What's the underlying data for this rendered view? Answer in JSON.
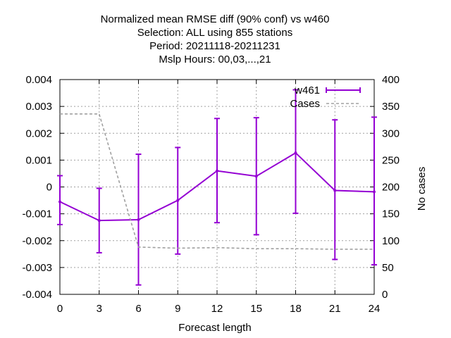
{
  "chart_data": {
    "type": "line",
    "title_lines": [
      "Normalized mean RMSE diff (90% conf) vs w460",
      "Selection: ALL using   855 stations",
      "Period: 20211118-20211231",
      "Mslp   Hours:  00,03,...,21"
    ],
    "xlabel": "Forecast length",
    "ylabel": "",
    "y2label": "No cases",
    "x": [
      0,
      3,
      6,
      9,
      12,
      15,
      18,
      21,
      24
    ],
    "xlim": [
      0,
      24
    ],
    "ylim": [
      -0.004,
      0.004
    ],
    "y2lim": [
      0,
      400
    ],
    "xticks": [
      "0",
      "3",
      "6",
      "9",
      "12",
      "15",
      "18",
      "21",
      "24"
    ],
    "yticks": [
      "-0.004",
      "-0.003",
      "-0.002",
      "-0.001",
      "0",
      "0.001",
      "0.002",
      "0.003",
      "0.004"
    ],
    "y2ticks": [
      "0",
      "50",
      "100",
      "150",
      "200",
      "250",
      "300",
      "350",
      "400"
    ],
    "grid": true,
    "legend_position": "top-right",
    "series": [
      {
        "name": "w461",
        "axis": "left",
        "color": "#9400d3",
        "values": [
          -0.00055,
          -0.00125,
          -0.00122,
          -0.0005,
          0.0006,
          0.0004,
          0.00127,
          -0.00013,
          -0.00018
        ],
        "err_low": [
          -0.0014,
          -0.00245,
          -0.00365,
          -0.0025,
          -0.00133,
          -0.00178,
          -0.00098,
          -0.0027,
          -0.0029
        ],
        "err_high": [
          0.00042,
          -5e-05,
          0.00122,
          0.00147,
          0.00255,
          0.00258,
          0.00362,
          0.0025,
          0.0026
        ]
      },
      {
        "name": "Cases",
        "axis": "right",
        "color": "#a0a0a0",
        "values": [
          336,
          336,
          88,
          86,
          87,
          85,
          85,
          84,
          84
        ]
      }
    ]
  }
}
